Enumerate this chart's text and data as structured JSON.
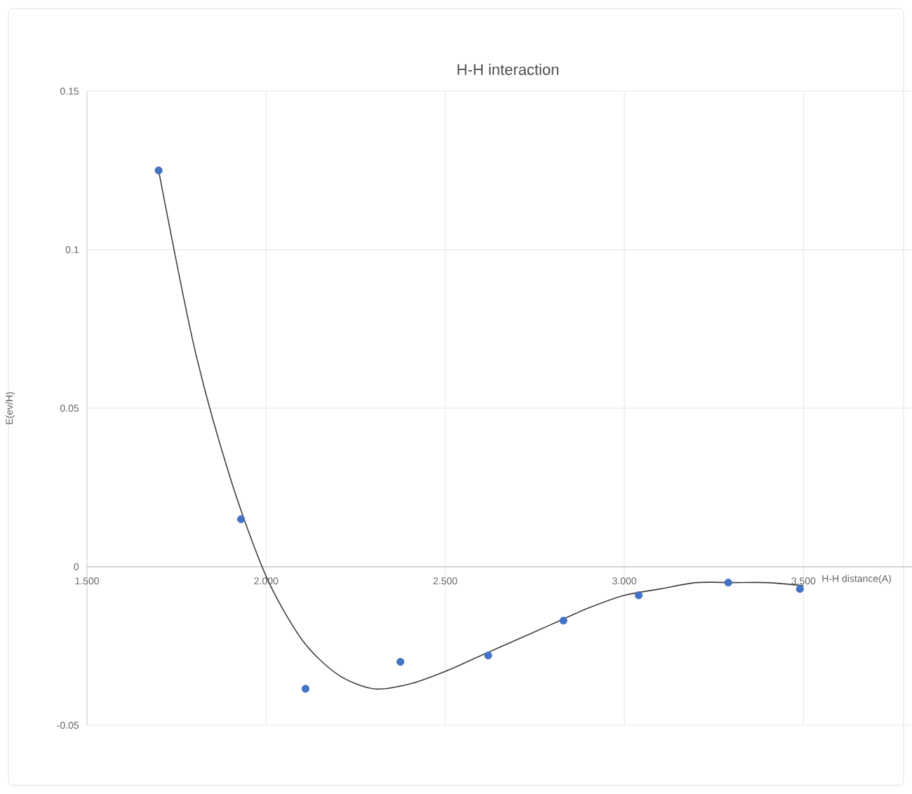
{
  "chart_data": {
    "type": "scatter",
    "title": "H-H interaction",
    "xlabel": "H-H distance(A)",
    "ylabel": "E(ev/H)",
    "xlim": [
      1.5,
      3.85
    ],
    "ylim": [
      -0.05,
      0.15
    ],
    "xticks": [
      {
        "value": 1.5,
        "label": "1.500"
      },
      {
        "value": 2,
        "label": "2.000"
      },
      {
        "value": 2.5,
        "label": "2.500"
      },
      {
        "value": 3,
        "label": "3.000"
      },
      {
        "value": 3.5,
        "label": "3.500"
      }
    ],
    "yticks": [
      -0.05,
      0,
      0.05,
      0.1,
      0.15
    ],
    "grid": true,
    "legend": false,
    "series": [
      {
        "color": "#4472c4",
        "marker": "circle",
        "x": [
          1.7,
          1.93,
          2.11,
          2.375,
          2.62,
          2.83,
          3.04,
          3.29,
          3.49
        ],
        "values": [
          0.125,
          0.015,
          -0.0385,
          -0.03,
          -0.028,
          -0.017,
          -0.009,
          -0.005,
          -0.007
        ]
      },
      {
        "type": "line",
        "color": "#404040",
        "marker": "none",
        "x": [
          1.7,
          1.8,
          1.9,
          2.0,
          2.1,
          2.2,
          2.3,
          2.4,
          2.5,
          2.6,
          2.7,
          2.8,
          2.9,
          3.0,
          3.1,
          3.2,
          3.3,
          3.4,
          3.5
        ],
        "values": [
          0.125,
          0.069,
          0.028,
          -0.003,
          -0.023,
          -0.034,
          -0.0385,
          -0.037,
          -0.033,
          -0.028,
          -0.023,
          -0.018,
          -0.013,
          -0.009,
          -0.007,
          -0.005,
          -0.005,
          -0.005,
          -0.006
        ]
      }
    ]
  }
}
